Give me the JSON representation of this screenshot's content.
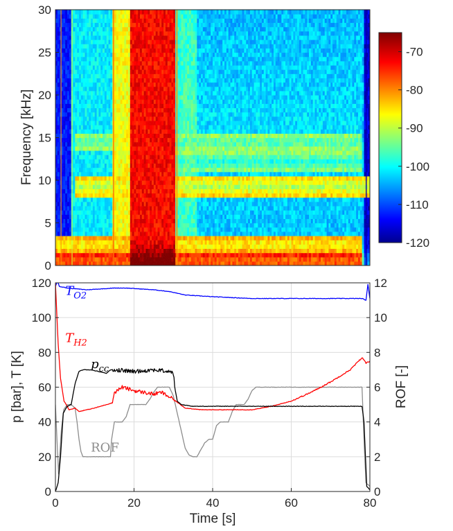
{
  "chart_data": [
    {
      "type": "heatmap",
      "title": "",
      "xlabel": "",
      "ylabel": "Frequency [kHz]",
      "xlim": [
        0,
        80
      ],
      "ylim": [
        0,
        30
      ],
      "y_ticks": [
        "0",
        "5",
        "10",
        "15",
        "20",
        "25",
        "30"
      ],
      "colorbar": {
        "range": [
          -120,
          -65
        ],
        "ticks": [
          "-70",
          "-80",
          "-90",
          "-100",
          "-110",
          "-120"
        ],
        "colormap": "jet"
      },
      "time_segments": [
        {
          "t": [
            0,
            4
          ],
          "level": -112
        },
        {
          "t": [
            4,
            14.5
          ],
          "level": -100
        },
        {
          "t": [
            14.5,
            19
          ],
          "level": -86
        },
        {
          "t": [
            19,
            30.5
          ],
          "level": -72
        },
        {
          "t": [
            30.5,
            36
          ],
          "level": -97
        },
        {
          "t": [
            36,
            78.5
          ],
          "level": -103
        },
        {
          "t": [
            78.5,
            80
          ],
          "level": -115
        }
      ],
      "bands": [
        {
          "f": 0.5,
          "t": [
            0,
            78
          ],
          "level": -78
        },
        {
          "f": 2.5,
          "t": [
            0,
            78
          ],
          "level": -86
        },
        {
          "f": 9.3,
          "t": [
            5,
            80
          ],
          "level": -90
        },
        {
          "f": 14.5,
          "t": [
            5,
            78
          ],
          "level": -96
        },
        {
          "f": 12.2,
          "t": [
            20,
            78
          ],
          "level": -98
        }
      ]
    },
    {
      "type": "line",
      "title": "",
      "xlabel": "Time [s]",
      "ylabel": "p [bar], T [K]",
      "y2label": "ROF [-]",
      "xlim": [
        0,
        80
      ],
      "ylim": [
        0,
        120
      ],
      "y2lim": [
        0,
        12
      ],
      "x_ticks": [
        "0",
        "20",
        "40",
        "60",
        "80"
      ],
      "y_ticks": [
        "0",
        "20",
        "40",
        "60",
        "80",
        "100",
        "120"
      ],
      "y2_ticks": [
        "0",
        "2",
        "4",
        "6",
        "8",
        "10",
        "12"
      ],
      "grid": true,
      "series": [
        {
          "name": "T_O2",
          "color": "#0000ff",
          "axis": "left",
          "x": [
            0,
            0.5,
            1,
            3,
            8,
            15,
            18,
            25,
            29,
            33,
            40,
            50,
            60,
            70,
            78,
            79,
            79.5,
            80
          ],
          "y": [
            118,
            121,
            118,
            117,
            116,
            117,
            117,
            116,
            115,
            113,
            112,
            111,
            111,
            111,
            111,
            110,
            119,
            111
          ]
        },
        {
          "name": "T_H2",
          "color": "#ff0000",
          "axis": "left",
          "x": [
            0,
            0.3,
            0.7,
            1.3,
            2.2,
            3.5,
            5,
            6,
            8,
            10,
            13,
            14.5,
            15,
            17,
            20,
            25,
            27,
            30,
            33,
            37,
            42,
            50,
            55,
            60,
            65,
            70,
            75,
            78,
            79,
            80
          ],
          "y": [
            120,
            105,
            85,
            65,
            52,
            47,
            48,
            46,
            47,
            48,
            50,
            51,
            57,
            60,
            58,
            56,
            57,
            53,
            48,
            47,
            47,
            47,
            49,
            52,
            57,
            63,
            70,
            77,
            74,
            75
          ]
        },
        {
          "name": "p_cc",
          "color": "#000000",
          "axis": "left",
          "x": [
            0,
            0.7,
            1.3,
            2,
            3,
            4,
            5,
            6,
            7,
            9,
            11,
            13,
            14,
            15,
            20,
            25,
            29,
            30,
            30.5,
            31,
            32,
            35,
            40,
            50,
            60,
            70,
            78,
            78.5,
            79.2,
            80
          ],
          "y": [
            0,
            5,
            20,
            45,
            49,
            50,
            62,
            69,
            70,
            70,
            69,
            68,
            70,
            70,
            69,
            70,
            69,
            68,
            58,
            52,
            50,
            49,
            49,
            49,
            49,
            49,
            49,
            40,
            3,
            1
          ]
        },
        {
          "name": "ROF",
          "color": "#8c8c8c",
          "axis": "right",
          "x": [
            0,
            0.8,
            1.5,
            2.1,
            3,
            4,
            5,
            5.5,
            6,
            6.5,
            7,
            8,
            14,
            14.3,
            15,
            17,
            18,
            19,
            23,
            24,
            25,
            26,
            29,
            30,
            31,
            32,
            33,
            34,
            35,
            36,
            38,
            39,
            40,
            41,
            42,
            44,
            45,
            46,
            48,
            49,
            50,
            51,
            55,
            60,
            70,
            78,
            78.5,
            79,
            80
          ],
          "y": [
            5,
            1,
            3.5,
            4.7,
            5,
            5,
            4.8,
            4,
            3,
            2.3,
            2,
            2,
            2,
            3,
            4,
            4,
            4.3,
            5,
            5,
            5.3,
            5.7,
            6,
            6,
            5.5,
            4.5,
            3.5,
            2.5,
            2.1,
            2,
            2,
            2.8,
            3,
            3,
            3.8,
            4,
            4,
            4.6,
            5,
            5,
            5.3,
            5.8,
            6,
            6,
            6,
            6,
            6,
            3,
            0.5,
            0.3
          ]
        }
      ],
      "annotations": [
        {
          "text": "T",
          "sub": "O2",
          "color": "#0000ff",
          "x": 2.5,
          "y": 113
        },
        {
          "text": "T",
          "sub": "H2",
          "color": "#ff0000",
          "x": 2.5,
          "y": 86
        },
        {
          "text": "p",
          "sub": "cc",
          "color": "#000000",
          "x": 9,
          "y": 71
        },
        {
          "text": "ROF",
          "sub": "",
          "color": "#8c8c8c",
          "x": 9,
          "y": 23
        }
      ]
    }
  ]
}
